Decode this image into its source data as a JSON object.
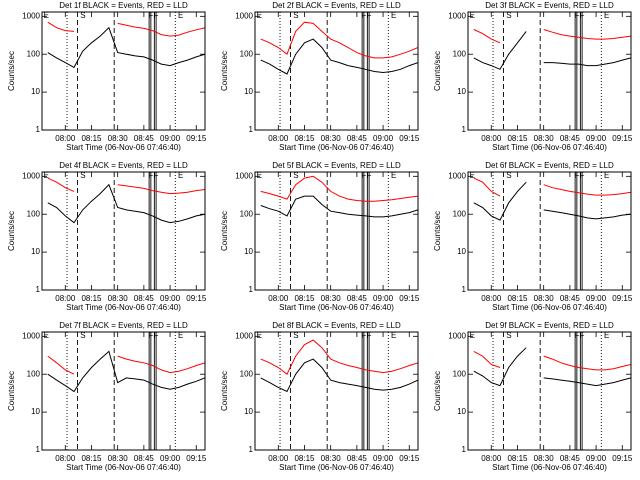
{
  "events": [
    {
      "x": "08:01",
      "style": "dotted"
    },
    {
      "x": "08:07",
      "style": "dashed"
    },
    {
      "x": "08:28",
      "style": "dashed"
    },
    {
      "x": "08:48",
      "style": "solid"
    },
    {
      "x": "08:49",
      "style": "solid"
    },
    {
      "x": "08:51",
      "style": "solid"
    },
    {
      "x": "08:52",
      "style": "solid"
    },
    {
      "x": "09:03",
      "style": "dotted"
    }
  ],
  "event_labels": [
    {
      "text": "E",
      "x": "07:47"
    },
    {
      "text": "S",
      "x": "08:08"
    },
    {
      "text": "F",
      "x": "08:47"
    },
    {
      "text": "F",
      "x": "08:50"
    },
    {
      "text": "E",
      "x": "09:04"
    }
  ],
  "chart_data": [
    {
      "type": "line",
      "title": "Det 1f BLACK = Events, RED = LLD",
      "x_label": "Start Time (06-Nov-06 07:46:40)",
      "y_label": "Counts/sec",
      "log_y": true,
      "xlim": [
        "07:46:40",
        "09:20"
      ],
      "xticks": [
        "08:00",
        "08:15",
        "08:30",
        "08:45",
        "09:00",
        "09:15"
      ],
      "ylim": [
        1,
        1300
      ],
      "yticks": [
        1,
        10,
        100,
        1000
      ],
      "x": [
        "07:50",
        "07:55",
        "08:00",
        "08:05",
        "08:10",
        "08:15",
        "08:20",
        "08:25",
        "08:30",
        "08:35",
        "08:40",
        "08:45",
        "08:50",
        "08:55",
        "09:00",
        "09:05",
        "09:10",
        "09:15",
        "09:20"
      ],
      "series": [
        {
          "color": "#ff0000",
          "values": [
            700,
            500,
            420,
            400,
            null,
            null,
            null,
            null,
            650,
            580,
            520,
            480,
            420,
            330,
            300,
            320,
            380,
            440,
            500
          ]
        },
        {
          "color": "#000000",
          "values": [
            110,
            80,
            60,
            45,
            120,
            200,
            300,
            500,
            110,
            100,
            90,
            85,
            70,
            55,
            50,
            60,
            70,
            85,
            100
          ]
        }
      ]
    },
    {
      "type": "line",
      "title": "Det 2f BLACK = Events, RED = LLD",
      "x_label": "Start Time (06-Nov-06 07:46:40)",
      "y_label": "Counts/sec",
      "log_y": true,
      "xlim": [
        "07:46:40",
        "09:20"
      ],
      "xticks": [
        "08:00",
        "08:15",
        "08:30",
        "08:45",
        "09:00",
        "09:15"
      ],
      "ylim": [
        1,
        1300
      ],
      "yticks": [
        1,
        10,
        100,
        1000
      ],
      "x": [
        "07:50",
        "07:55",
        "08:00",
        "08:05",
        "08:10",
        "08:15",
        "08:20",
        "08:25",
        "08:30",
        "08:35",
        "08:40",
        "08:45",
        "08:50",
        "08:55",
        "09:00",
        "09:05",
        "09:10",
        "09:15",
        "09:20"
      ],
      "series": [
        {
          "color": "#ff0000",
          "values": [
            250,
            200,
            150,
            100,
            400,
            700,
            650,
            400,
            250,
            200,
            150,
            110,
            90,
            80,
            80,
            85,
            100,
            120,
            150
          ]
        },
        {
          "color": "#000000",
          "values": [
            70,
            55,
            40,
            30,
            100,
            200,
            250,
            150,
            70,
            60,
            50,
            45,
            40,
            35,
            33,
            35,
            40,
            50,
            60
          ]
        }
      ]
    },
    {
      "type": "line",
      "title": "Det 3f BLACK = Events, RED = LLD",
      "x_label": "Start Time (06-Nov-06 07:46:40)",
      "y_label": "Counts/sec",
      "log_y": true,
      "xlim": [
        "07:46:40",
        "09:20"
      ],
      "xticks": [
        "08:00",
        "08:15",
        "08:30",
        "08:45",
        "09:00",
        "09:15"
      ],
      "ylim": [
        1,
        1300
      ],
      "yticks": [
        1,
        10,
        100,
        1000
      ],
      "x": [
        "07:50",
        "07:55",
        "08:00",
        "08:05",
        "08:10",
        "08:15",
        "08:20",
        "08:25",
        "08:30",
        "08:35",
        "08:40",
        "08:45",
        "08:50",
        "08:55",
        "09:00",
        "09:05",
        "09:10",
        "09:15",
        "09:20"
      ],
      "series": [
        {
          "color": "#ff0000",
          "values": [
            450,
            350,
            250,
            200,
            null,
            null,
            null,
            null,
            450,
            380,
            330,
            300,
            280,
            260,
            250,
            250,
            260,
            280,
            300
          ]
        },
        {
          "color": "#000000",
          "values": [
            80,
            60,
            50,
            40,
            100,
            200,
            400,
            null,
            60,
            60,
            58,
            55,
            55,
            50,
            50,
            55,
            60,
            70,
            80
          ]
        }
      ]
    },
    {
      "type": "line",
      "title": "Det 4f BLACK = Events, RED = LLD",
      "x_label": "Start Time (06-Nov-06 07:46:40)",
      "y_label": "Counts/sec",
      "log_y": true,
      "xlim": [
        "07:46:40",
        "09:20"
      ],
      "xticks": [
        "08:00",
        "08:15",
        "08:30",
        "08:45",
        "09:00",
        "09:15"
      ],
      "ylim": [
        1,
        1300
      ],
      "yticks": [
        1,
        10,
        100,
        1000
      ],
      "x": [
        "07:50",
        "07:55",
        "08:00",
        "08:05",
        "08:10",
        "08:15",
        "08:20",
        "08:25",
        "08:30",
        "08:35",
        "08:40",
        "08:45",
        "08:50",
        "08:55",
        "09:00",
        "09:05",
        "09:10",
        "09:15",
        "09:20"
      ],
      "series": [
        {
          "color": "#ff0000",
          "values": [
            900,
            700,
            500,
            400,
            null,
            null,
            null,
            null,
            600,
            560,
            520,
            480,
            420,
            380,
            350,
            360,
            380,
            420,
            450
          ]
        },
        {
          "color": "#000000",
          "values": [
            200,
            150,
            90,
            60,
            130,
            220,
            350,
            600,
            150,
            130,
            120,
            110,
            90,
            70,
            60,
            65,
            75,
            90,
            100
          ]
        }
      ]
    },
    {
      "type": "line",
      "title": "Det 5f BLACK = Events, RED = LLD",
      "x_label": "Start Time (06-Nov-06 07:46:40)",
      "y_label": "Counts/sec",
      "log_y": true,
      "xlim": [
        "07:46:40",
        "09:20"
      ],
      "xticks": [
        "08:00",
        "08:15",
        "08:30",
        "08:45",
        "09:00",
        "09:15"
      ],
      "ylim": [
        1,
        1300
      ],
      "yticks": [
        1,
        10,
        100,
        1000
      ],
      "x": [
        "07:50",
        "07:55",
        "08:00",
        "08:05",
        "08:10",
        "08:15",
        "08:20",
        "08:25",
        "08:30",
        "08:35",
        "08:40",
        "08:45",
        "08:50",
        "08:55",
        "09:00",
        "09:05",
        "09:10",
        "09:15",
        "09:20"
      ],
      "series": [
        {
          "color": "#ff0000",
          "values": [
            400,
            350,
            300,
            250,
            600,
            900,
            1000,
            700,
            400,
            300,
            250,
            230,
            220,
            220,
            230,
            240,
            260,
            280,
            300
          ]
        },
        {
          "color": "#000000",
          "values": [
            170,
            140,
            120,
            90,
            250,
            300,
            300,
            180,
            120,
            110,
            100,
            95,
            90,
            85,
            85,
            90,
            100,
            110,
            130
          ]
        }
      ]
    },
    {
      "type": "line",
      "title": "Det 6f BLACK = Events, RED = LLD",
      "x_label": "Start Time (06-Nov-06 07:46:40)",
      "y_label": "Counts/sec",
      "log_y": true,
      "xlim": [
        "07:46:40",
        "09:20"
      ],
      "xticks": [
        "08:00",
        "08:15",
        "08:30",
        "08:45",
        "09:00",
        "09:15"
      ],
      "ylim": [
        1,
        1300
      ],
      "yticks": [
        1,
        10,
        100,
        1000
      ],
      "x": [
        "07:50",
        "07:55",
        "08:00",
        "08:05",
        "08:10",
        "08:15",
        "08:20",
        "08:25",
        "08:30",
        "08:35",
        "08:40",
        "08:45",
        "08:50",
        "08:55",
        "09:00",
        "09:05",
        "09:10",
        "09:15",
        "09:20"
      ],
      "series": [
        {
          "color": "#ff0000",
          "values": [
            900,
            700,
            400,
            300,
            null,
            null,
            null,
            null,
            600,
            500,
            450,
            400,
            370,
            340,
            320,
            320,
            330,
            350,
            380
          ]
        },
        {
          "color": "#000000",
          "values": [
            200,
            150,
            90,
            70,
            200,
            400,
            700,
            null,
            130,
            120,
            110,
            100,
            90,
            80,
            75,
            80,
            85,
            95,
            100
          ]
        }
      ]
    },
    {
      "type": "line",
      "title": "Det 7f BLACK = Events, RED = LLD",
      "x_label": "Start Time (06-Nov-06 07:46:40)",
      "y_label": "Counts/sec",
      "log_y": true,
      "xlim": [
        "07:46:40",
        "09:20"
      ],
      "xticks": [
        "08:00",
        "08:15",
        "08:30",
        "08:45",
        "09:00",
        "09:15"
      ],
      "ylim": [
        1,
        1300
      ],
      "yticks": [
        1,
        10,
        100,
        1000
      ],
      "x": [
        "07:50",
        "07:55",
        "08:00",
        "08:05",
        "08:10",
        "08:15",
        "08:20",
        "08:25",
        "08:30",
        "08:35",
        "08:40",
        "08:45",
        "08:50",
        "08:55",
        "09:00",
        "09:05",
        "09:10",
        "09:15",
        "09:20"
      ],
      "series": [
        {
          "color": "#ff0000",
          "values": [
            300,
            200,
            130,
            100,
            null,
            null,
            null,
            null,
            300,
            250,
            220,
            200,
            170,
            130,
            110,
            120,
            140,
            170,
            200
          ]
        },
        {
          "color": "#000000",
          "values": [
            100,
            70,
            50,
            35,
            80,
            150,
            250,
            400,
            60,
            80,
            75,
            70,
            55,
            45,
            40,
            45,
            55,
            65,
            80
          ]
        }
      ]
    },
    {
      "type": "line",
      "title": "Det 8f BLACK = Events, RED = LLD",
      "x_label": "Start Time (06-Nov-06 07:46:40)",
      "y_label": "Counts/sec",
      "log_y": true,
      "xlim": [
        "07:46:40",
        "09:20"
      ],
      "xticks": [
        "08:00",
        "08:15",
        "08:30",
        "08:45",
        "09:00",
        "09:15"
      ],
      "ylim": [
        1,
        1300
      ],
      "yticks": [
        1,
        10,
        100,
        1000
      ],
      "x": [
        "07:50",
        "07:55",
        "08:00",
        "08:05",
        "08:10",
        "08:15",
        "08:20",
        "08:25",
        "08:30",
        "08:35",
        "08:40",
        "08:45",
        "08:50",
        "08:55",
        "09:00",
        "09:05",
        "09:10",
        "09:15",
        "09:20"
      ],
      "series": [
        {
          "color": "#ff0000",
          "values": [
            250,
            200,
            150,
            100,
            300,
            600,
            800,
            500,
            250,
            200,
            170,
            150,
            130,
            120,
            110,
            120,
            140,
            170,
            200
          ]
        },
        {
          "color": "#000000",
          "values": [
            80,
            60,
            45,
            35,
            100,
            200,
            250,
            150,
            70,
            60,
            55,
            50,
            45,
            40,
            38,
            40,
            45,
            55,
            70
          ]
        }
      ]
    },
    {
      "type": "line",
      "title": "Det 9f BLACK = Events, RED = LLD",
      "x_label": "Start Time (06-Nov-06 07:46:40)",
      "y_label": "Counts/sec",
      "log_y": true,
      "xlim": [
        "07:46:40",
        "09:20"
      ],
      "xticks": [
        "08:00",
        "08:15",
        "08:30",
        "08:45",
        "09:00",
        "09:15"
      ],
      "ylim": [
        1,
        1300
      ],
      "yticks": [
        1,
        10,
        100,
        1000
      ],
      "x": [
        "07:50",
        "07:55",
        "08:00",
        "08:05",
        "08:10",
        "08:15",
        "08:20",
        "08:25",
        "08:30",
        "08:35",
        "08:40",
        "08:45",
        "08:50",
        "08:55",
        "09:00",
        "09:05",
        "09:10",
        "09:15",
        "09:20"
      ],
      "series": [
        {
          "color": "#ff0000",
          "values": [
            400,
            300,
            180,
            150,
            null,
            null,
            null,
            null,
            300,
            250,
            200,
            170,
            150,
            140,
            130,
            130,
            140,
            160,
            180
          ]
        },
        {
          "color": "#000000",
          "values": [
            120,
            90,
            60,
            50,
            150,
            300,
            500,
            null,
            80,
            75,
            70,
            65,
            60,
            55,
            50,
            55,
            60,
            70,
            80
          ]
        }
      ]
    }
  ]
}
